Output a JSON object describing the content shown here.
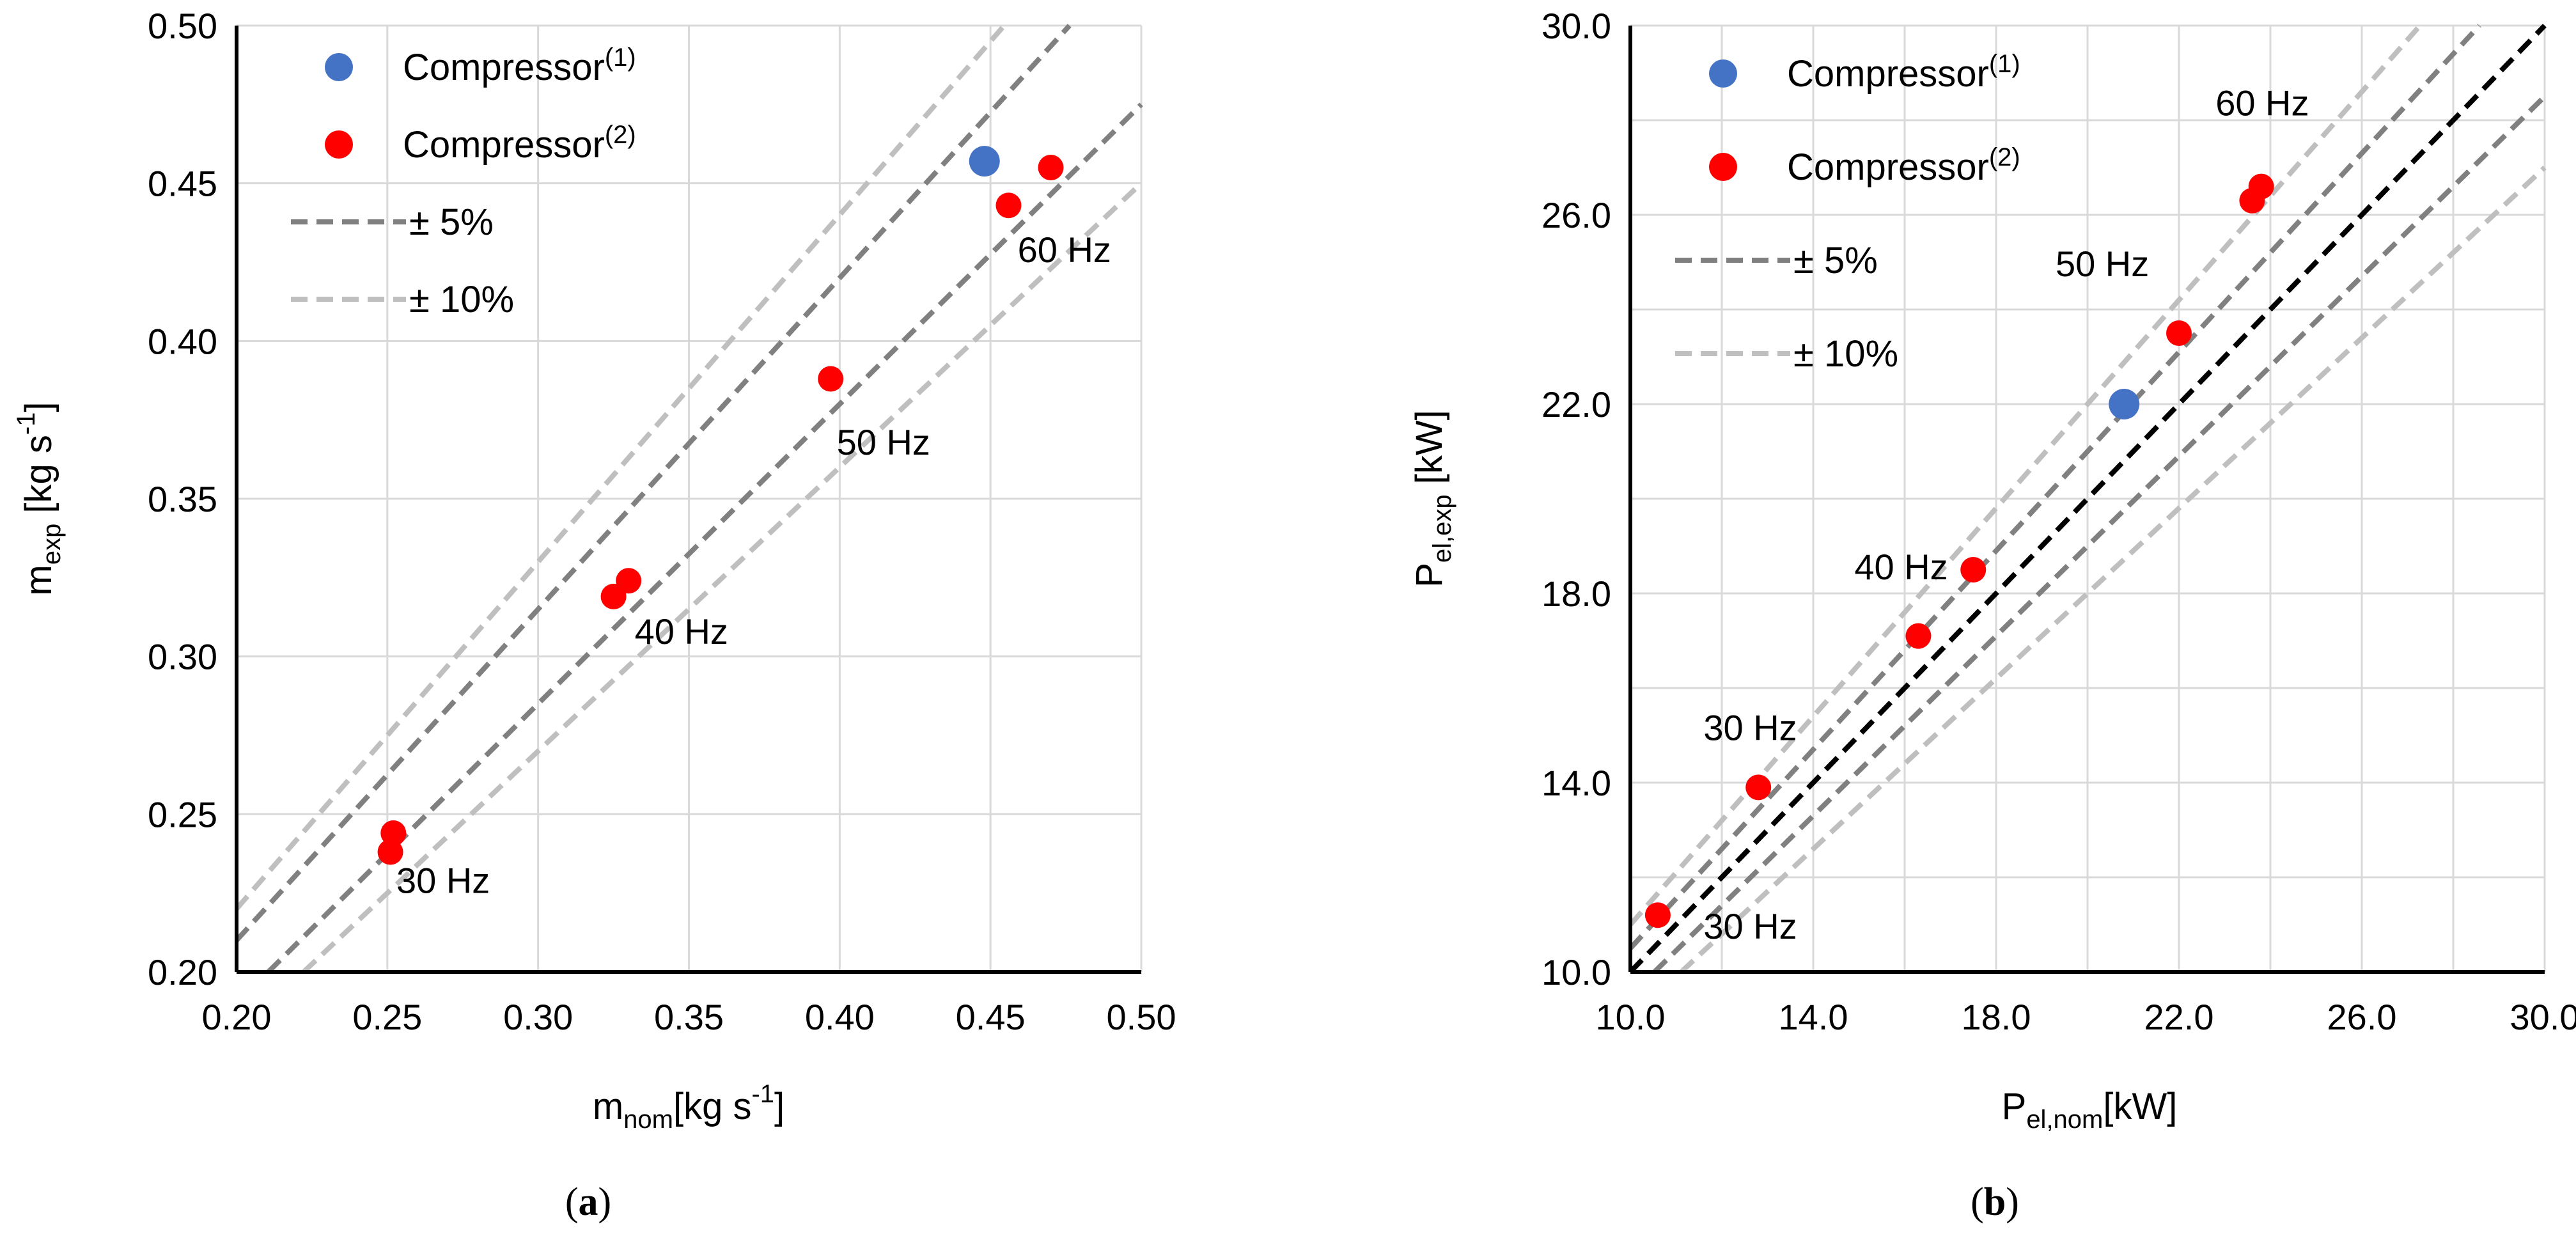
{
  "chart_data": [
    {
      "id": "a",
      "type": "scatter",
      "caption_open": "(",
      "caption_letter": "a",
      "caption_close": ")",
      "xlabel_main": "m",
      "xlabel_sub": "nom",
      "xlabel_unit": "[kg s",
      "xlabel_exp": "-1",
      "xlabel_close": "]",
      "ylabel_main": "m",
      "ylabel_sub": "exp",
      "ylabel_unit": " [kg s",
      "ylabel_exp": "-1",
      "ylabel_close": "]",
      "xlim": [
        0.2,
        0.5
      ],
      "ylim": [
        0.2,
        0.5
      ],
      "xticks": [
        0.2,
        0.25,
        0.3,
        0.35,
        0.4,
        0.45,
        0.5
      ],
      "yticks": [
        0.2,
        0.25,
        0.3,
        0.35,
        0.4,
        0.45,
        0.5
      ],
      "xtick_labels": [
        "0.20",
        "0.25",
        "0.30",
        "0.35",
        "0.40",
        "0.45",
        "0.50"
      ],
      "ytick_labels": [
        "0.20",
        "0.25",
        "0.30",
        "0.35",
        "0.40",
        "0.45",
        "0.50"
      ],
      "grid": true,
      "legend": [
        {
          "label": "Compressor",
          "sup": "(1)",
          "kind": "marker",
          "color": "#4472c4"
        },
        {
          "label": "Compressor",
          "sup": "(2)",
          "kind": "marker",
          "color": "#ff0000"
        },
        {
          "label": "± 5%",
          "kind": "dash",
          "color": "#808080"
        },
        {
          "label": "± 10%",
          "kind": "dash",
          "color": "#bfbfbf"
        }
      ],
      "series": [
        {
          "name": "Compressor(1)",
          "color": "#4472c4",
          "size": "large",
          "x": [
            0.448
          ],
          "y": [
            0.457
          ]
        },
        {
          "name": "Compressor(2)",
          "color": "#ff0000",
          "size": "small",
          "x": [
            0.251,
            0.252,
            0.325,
            0.33,
            0.397,
            0.456,
            0.47
          ],
          "y": [
            0.238,
            0.244,
            0.319,
            0.324,
            0.388,
            0.443,
            0.455
          ]
        }
      ],
      "reference_lines": [
        {
          "factor": 1.05,
          "color": "#808080"
        },
        {
          "factor": 0.95,
          "color": "#808080"
        },
        {
          "factor": 1.1,
          "color": "#bfbfbf"
        },
        {
          "factor": 0.9,
          "color": "#bfbfbf"
        }
      ],
      "annotations": [
        {
          "text": "30 Hz",
          "x": 0.253,
          "y": 0.225
        },
        {
          "text": "40 Hz",
          "x": 0.332,
          "y": 0.304
        },
        {
          "text": "50 Hz",
          "x": 0.399,
          "y": 0.364
        },
        {
          "text": "60 Hz",
          "x": 0.459,
          "y": 0.425
        }
      ]
    },
    {
      "id": "b",
      "type": "scatter",
      "caption_open": "(",
      "caption_letter": "b",
      "caption_close": ")",
      "xlabel_main": "P",
      "xlabel_sub": "el,nom",
      "xlabel_unit": "[kW]",
      "ylabel_main": "P",
      "ylabel_sub": "el,exp",
      "ylabel_unit": " [kW]",
      "xlim": [
        10.0,
        30.0
      ],
      "ylim": [
        10.0,
        30.0
      ],
      "xticks": [
        10,
        14,
        18,
        22,
        26,
        30
      ],
      "yticks": [
        10,
        14,
        18,
        22,
        26,
        30
      ],
      "xtick_labels": [
        "10.0",
        "14.0",
        "18.0",
        "22.0",
        "26.0",
        "30.0"
      ],
      "ytick_labels": [
        "10.0",
        "14.0",
        "18.0",
        "22.0",
        "26.0",
        "30.0"
      ],
      "minor_xgrid": [
        12,
        16,
        20,
        24,
        28
      ],
      "minor_ygrid": [
        12,
        16,
        20,
        24,
        28
      ],
      "grid": true,
      "legend": [
        {
          "label": "Compressor",
          "sup": "(1)",
          "kind": "marker",
          "color": "#4472c4"
        },
        {
          "label": "Compressor",
          "sup": "(2)",
          "kind": "marker",
          "color": "#ff0000"
        },
        {
          "label": "± 5%",
          "kind": "dash",
          "color": "#808080"
        },
        {
          "label": "± 10%",
          "kind": "dash",
          "color": "#bfbfbf"
        }
      ],
      "series": [
        {
          "name": "Compressor(1)",
          "color": "#4472c4",
          "size": "large",
          "x": [
            20.8
          ],
          "y": [
            22.0
          ]
        },
        {
          "name": "Compressor(2)",
          "color": "#ff0000",
          "size": "small",
          "x": [
            10.6,
            12.8,
            16.3,
            17.5,
            22.0,
            23.6,
            23.8
          ],
          "y": [
            11.2,
            13.9,
            17.1,
            18.5,
            23.5,
            26.3,
            26.6
          ]
        }
      ],
      "reference_lines": [
        {
          "factor": 1.0,
          "color": "#000000"
        },
        {
          "factor": 1.05,
          "color": "#808080"
        },
        {
          "factor": 0.95,
          "color": "#808080"
        },
        {
          "factor": 1.1,
          "color": "#bfbfbf"
        },
        {
          "factor": 0.9,
          "color": "#bfbfbf"
        }
      ],
      "annotations": [
        {
          "text": "30 Hz",
          "x": 11.6,
          "y": 10.7
        },
        {
          "text": "30 Hz",
          "x": 11.6,
          "y": 14.9
        },
        {
          "text": "40 Hz",
          "x": 14.9,
          "y": 18.3
        },
        {
          "text": "50 Hz",
          "x": 19.3,
          "y": 24.7
        },
        {
          "text": "60 Hz",
          "x": 22.8,
          "y": 28.1
        }
      ]
    }
  ]
}
